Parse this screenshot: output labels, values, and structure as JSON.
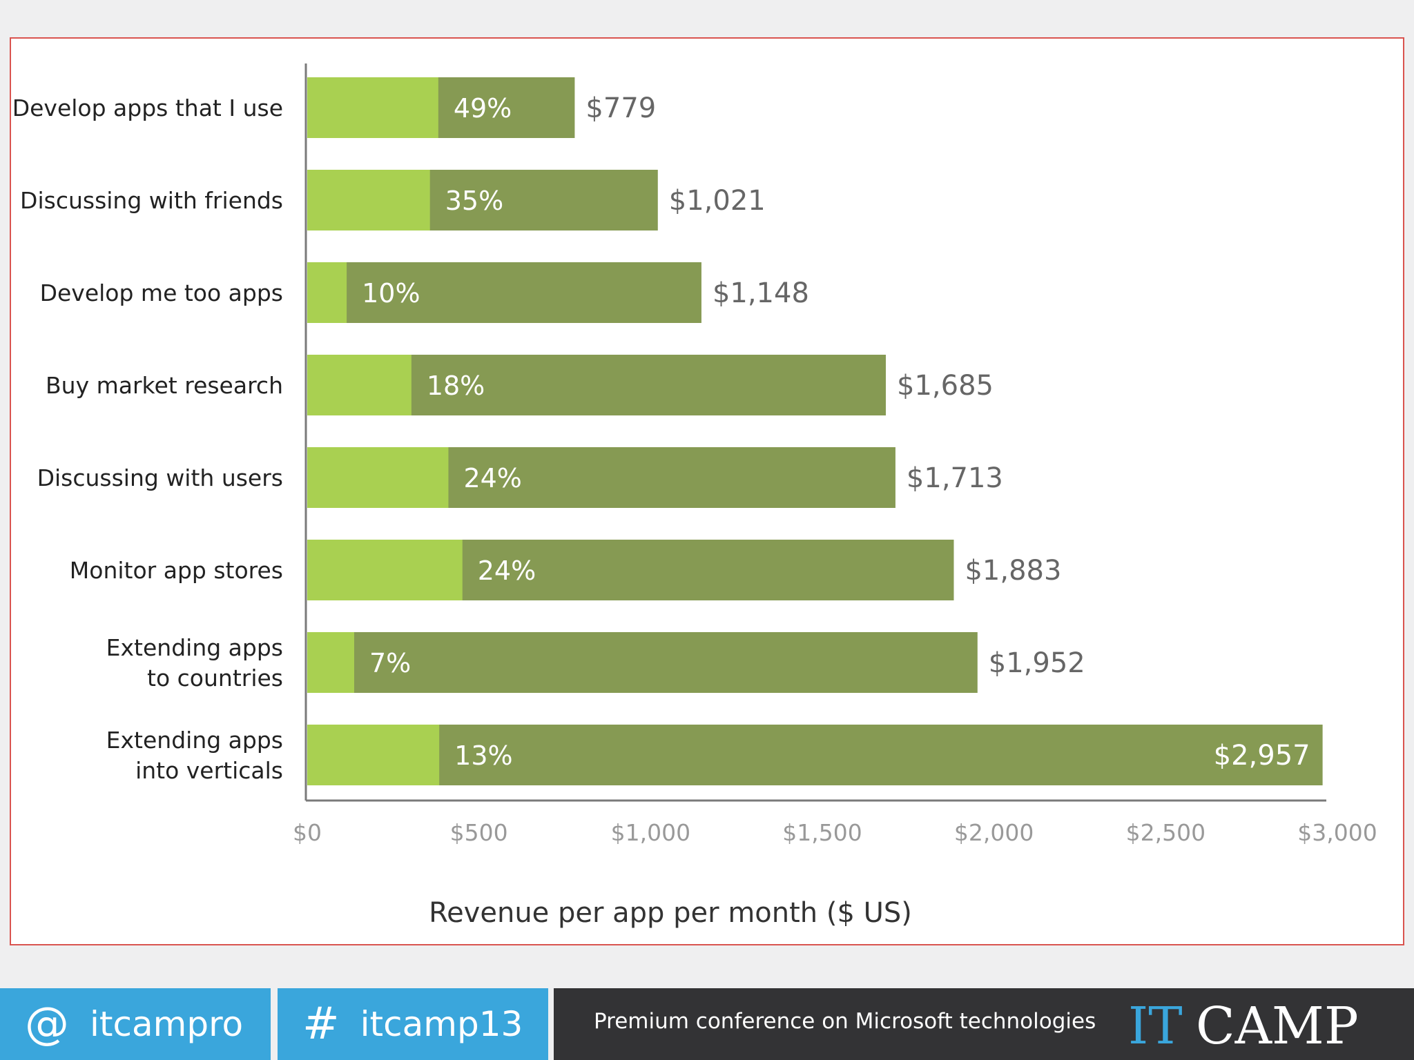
{
  "chart_data": {
    "type": "bar",
    "orientation": "horizontal",
    "stacked": true,
    "categories": [
      [
        "Develop apps that I use"
      ],
      [
        "Discussing with friends"
      ],
      [
        "Develop me too apps"
      ],
      [
        "Buy market research"
      ],
      [
        "Discussing with users"
      ],
      [
        "Monitor app stores"
      ],
      [
        "Extending apps",
        "to countries"
      ],
      [
        "Extending apps",
        "into verticals"
      ]
    ],
    "values": [
      779,
      1021,
      1148,
      1685,
      1713,
      1883,
      1952,
      2957
    ],
    "value_labels": [
      "$779",
      "$1,021",
      "$1,148",
      "$1,685",
      "$1,713",
      "$1,883",
      "$1,952",
      "$2,957"
    ],
    "percentages": [
      49,
      35,
      10,
      18,
      24,
      24,
      7,
      13
    ],
    "percentage_labels": [
      "49%",
      "35%",
      "10%",
      "18%",
      "24%",
      "24%",
      "7%",
      "13%"
    ],
    "xlim": [
      0,
      3000
    ],
    "xticks": [
      0,
      500,
      1000,
      1500,
      2000,
      2500,
      3000
    ],
    "xtick_labels": [
      "$0",
      "$500",
      "$1,000",
      "$1,500",
      "$2,000",
      "$2,500",
      "$3,000"
    ],
    "xlabel": "Revenue per app per month ($ US)",
    "ylabel": "",
    "title": "",
    "grid": false,
    "colors": {
      "segment_light": "#a9d051",
      "segment_dark": "#869a53",
      "axis": "#7a7a7a"
    }
  },
  "footer": {
    "twitter_symbol": "@",
    "twitter_handle": "itcampro",
    "hashtag_symbol": "#",
    "hashtag": "itcamp13",
    "tagline": "Premium conference on Microsoft technologies",
    "logo_text": "ITCAMP",
    "colors": {
      "accent": "#3aa6dc",
      "dark": "#333335"
    }
  }
}
